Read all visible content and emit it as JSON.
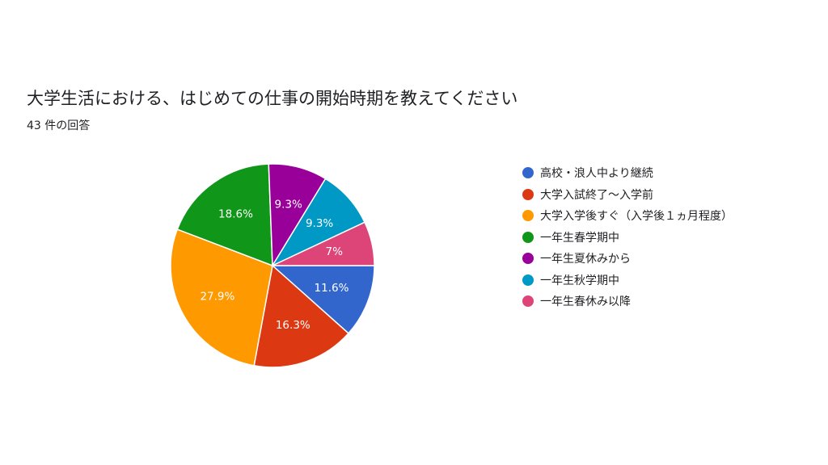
{
  "title": "大学生活における、はじめての仕事の開始時期を教えてください",
  "subtitle": "43 件の回答",
  "chart_data": {
    "type": "pie",
    "slices": [
      {
        "label": "高校・浪人中より継続",
        "value": 11.6,
        "display": "11.6%",
        "color": "#3366cc"
      },
      {
        "label": "大学入試終了〜入学前",
        "value": 16.3,
        "display": "16.3%",
        "color": "#dc3912"
      },
      {
        "label": "大学入学後すぐ（入学後１ヵ月程度）",
        "value": 27.9,
        "display": "27.9%",
        "color": "#ff9900"
      },
      {
        "label": "一年生春学期中",
        "value": 18.6,
        "display": "18.6%",
        "color": "#109618"
      },
      {
        "label": "一年生夏休みから",
        "value": 9.3,
        "display": "9.3%",
        "color": "#990099"
      },
      {
        "label": "一年生秋学期中",
        "value": 9.3,
        "display": "9.3%",
        "color": "#0099c6"
      },
      {
        "label": "一年生春休み以降",
        "value": 7.0,
        "display": "7%",
        "color": "#dd4477"
      }
    ],
    "legend_position": "right"
  }
}
